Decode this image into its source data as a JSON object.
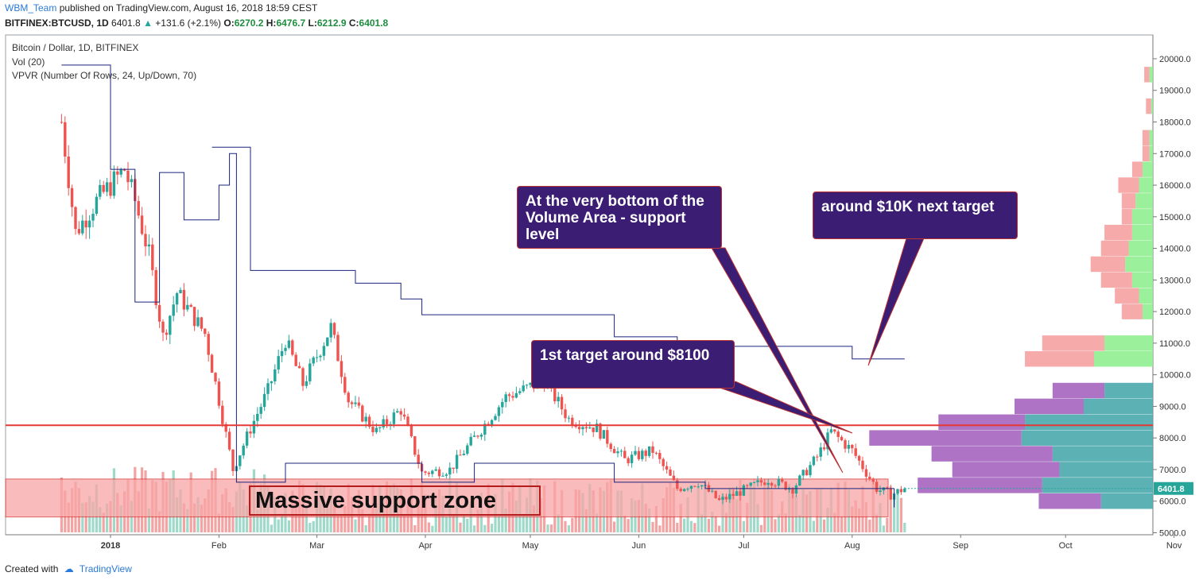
{
  "header": {
    "user": "WBM_Team",
    "published": "published on TradingView.com, August 16, 2018 18:59 CEST",
    "symbol": "BITFINEX:BTCUSD, 1D",
    "last": "6401.8",
    "change": "+131.6 (+2.1%)",
    "o_label": "O:",
    "o": "6270.2",
    "h_label": "H:",
    "h": "6476.7",
    "l_label": "L:",
    "l": "6212.9",
    "c_label": "C:",
    "c": "6401.8"
  },
  "legend": {
    "series": "Bitcoin / Dollar, 1D, BITFINEX",
    "vol": "Vol (20)",
    "vpvr": "VPVR (Number Of Rows, 24, Up/Down, 70)"
  },
  "annotations": {
    "volume_area_bottom": "At the very bottom of the Volume Area - support level",
    "next_target": "around $10K next target",
    "first_target": "1st target around $8100",
    "support_zone": "Massive support zone"
  },
  "footer": {
    "created_with": "Created with",
    "brand": "TradingView"
  },
  "colors": {
    "up": "#26a69a",
    "down": "#ef5350",
    "vah_line": "#1a237e",
    "support_line": "#e53935",
    "zone": "#f7a5a5",
    "callout": "#3b1d73"
  },
  "chart_data": {
    "type": "candlestick",
    "title": "Bitcoin / Dollar, 1D, BITFINEX",
    "ylim": [
      5000,
      20500
    ],
    "y_ticks": [
      "20000.0",
      "19000.0",
      "18000.0",
      "17000.0",
      "16000.0",
      "15000.0",
      "14000.0",
      "13000.0",
      "12000.0",
      "11000.0",
      "10000.0",
      "9000.0",
      "8000.0",
      "7000.0",
      "6000.0",
      "5000.0"
    ],
    "x_ticks": [
      "2018",
      "Feb",
      "Mar",
      "Apr",
      "May",
      "Jun",
      "Jul",
      "Aug",
      "Sep",
      "Oct",
      "Nov"
    ],
    "last_price_label": "6401.8",
    "support_level": 8400,
    "support_zone": [
      5500,
      6700
    ],
    "price_path": [
      [
        "2017-12-18",
        18000
      ],
      [
        "2017-12-22",
        14500
      ],
      [
        "2017-12-28",
        15500
      ],
      [
        "2018-01-05",
        16500
      ],
      [
        "2018-01-08",
        15500
      ],
      [
        "2018-01-12",
        13800
      ],
      [
        "2018-01-16",
        11200
      ],
      [
        "2018-01-20",
        12600
      ],
      [
        "2018-01-28",
        11300
      ],
      [
        "2018-02-01",
        9200
      ],
      [
        "2018-02-05",
        7000
      ],
      [
        "2018-02-10",
        8300
      ],
      [
        "2018-02-15",
        9500
      ],
      [
        "2018-02-20",
        11100
      ],
      [
        "2018-02-25",
        9700
      ],
      [
        "2018-03-05",
        11500
      ],
      [
        "2018-03-10",
        9200
      ],
      [
        "2018-03-18",
        8200
      ],
      [
        "2018-03-25",
        8900
      ],
      [
        "2018-03-31",
        6900
      ],
      [
        "2018-04-08",
        7000
      ],
      [
        "2018-04-15",
        8000
      ],
      [
        "2018-04-24",
        9300
      ],
      [
        "2018-05-05",
        9800
      ],
      [
        "2018-05-12",
        8600
      ],
      [
        "2018-05-20",
        8300
      ],
      [
        "2018-05-28",
        7300
      ],
      [
        "2018-06-05",
        7600
      ],
      [
        "2018-06-12",
        6400
      ],
      [
        "2018-06-18",
        6600
      ],
      [
        "2018-06-24",
        6000
      ],
      [
        "2018-06-30",
        6300
      ],
      [
        "2018-07-08",
        6700
      ],
      [
        "2018-07-15",
        6400
      ],
      [
        "2018-07-22",
        7400
      ],
      [
        "2018-07-26",
        8200
      ],
      [
        "2018-08-01",
        7600
      ],
      [
        "2018-08-08",
        6400
      ],
      [
        "2018-08-12",
        6200
      ],
      [
        "2018-08-16",
        6401.8
      ]
    ],
    "value_area_high": [
      [
        "2017-12-18",
        19800
      ],
      [
        "2018-01-01",
        16500
      ],
      [
        "2018-01-08",
        12300
      ],
      [
        "2018-01-15",
        16400
      ],
      [
        "2018-01-22",
        14900
      ],
      [
        "2018-02-01",
        16000
      ],
      [
        "2018-02-04",
        17000
      ],
      [
        "2018-02-06",
        6600
      ],
      [
        "2018-02-20",
        7200
      ],
      [
        "2018-03-31",
        6600
      ],
      [
        "2018-04-15",
        7200
      ],
      [
        "2018-05-25",
        6600
      ],
      [
        "2018-06-20",
        6400
      ],
      [
        "2018-08-12",
        6400
      ],
      [
        "2018-08-13",
        5800
      ]
    ],
    "upper_profile_line": [
      [
        "2018-01-30",
        17200
      ],
      [
        "2018-02-08",
        17200
      ],
      [
        "2018-02-10",
        13300
      ],
      [
        "2018-03-01",
        13300
      ],
      [
        "2018-03-12",
        12900
      ],
      [
        "2018-03-25",
        12400
      ],
      [
        "2018-03-31",
        11900
      ],
      [
        "2018-05-25",
        11200
      ],
      [
        "2018-06-12",
        11000
      ],
      [
        "2018-06-25",
        10900
      ],
      [
        "2018-07-28",
        10900
      ],
      [
        "2018-08-01",
        10500
      ],
      [
        "2018-08-16",
        10500
      ]
    ],
    "vpvr_rows": [
      {
        "price": 6000,
        "up": 1500,
        "down": 1800
      },
      {
        "price": 6500,
        "up": 3200,
        "down": 3600
      },
      {
        "price": 7000,
        "up": 2700,
        "down": 3100
      },
      {
        "price": 7500,
        "up": 2900,
        "down": 3500
      },
      {
        "price": 8000,
        "up": 3800,
        "down": 4400
      },
      {
        "price": 8500,
        "up": 3700,
        "down": 2500
      },
      {
        "price": 9000,
        "up": 2000,
        "down": 2000
      },
      {
        "price": 9500,
        "up": 1400,
        "down": 1500
      },
      {
        "price": 10500,
        "up": 1700,
        "down": 2000
      },
      {
        "price": 11000,
        "up": 1400,
        "down": 1800
      },
      {
        "price": 12000,
        "up": 300,
        "down": 600
      },
      {
        "price": 12500,
        "up": 400,
        "down": 700
      },
      {
        "price": 13000,
        "up": 600,
        "down": 900
      },
      {
        "price": 13500,
        "up": 800,
        "down": 1000
      },
      {
        "price": 14000,
        "up": 700,
        "down": 800
      },
      {
        "price": 14500,
        "up": 600,
        "down": 800
      },
      {
        "price": 15000,
        "up": 600,
        "down": 300
      },
      {
        "price": 15500,
        "up": 500,
        "down": 400
      },
      {
        "price": 16000,
        "up": 400,
        "down": 600
      },
      {
        "price": 16500,
        "up": 300,
        "down": 300
      },
      {
        "price": 17000,
        "up": 100,
        "down": 200
      },
      {
        "price": 17500,
        "up": 100,
        "down": 200
      },
      {
        "price": 18500,
        "up": 50,
        "down": 150
      },
      {
        "price": 19500,
        "up": 100,
        "down": 150
      }
    ]
  }
}
